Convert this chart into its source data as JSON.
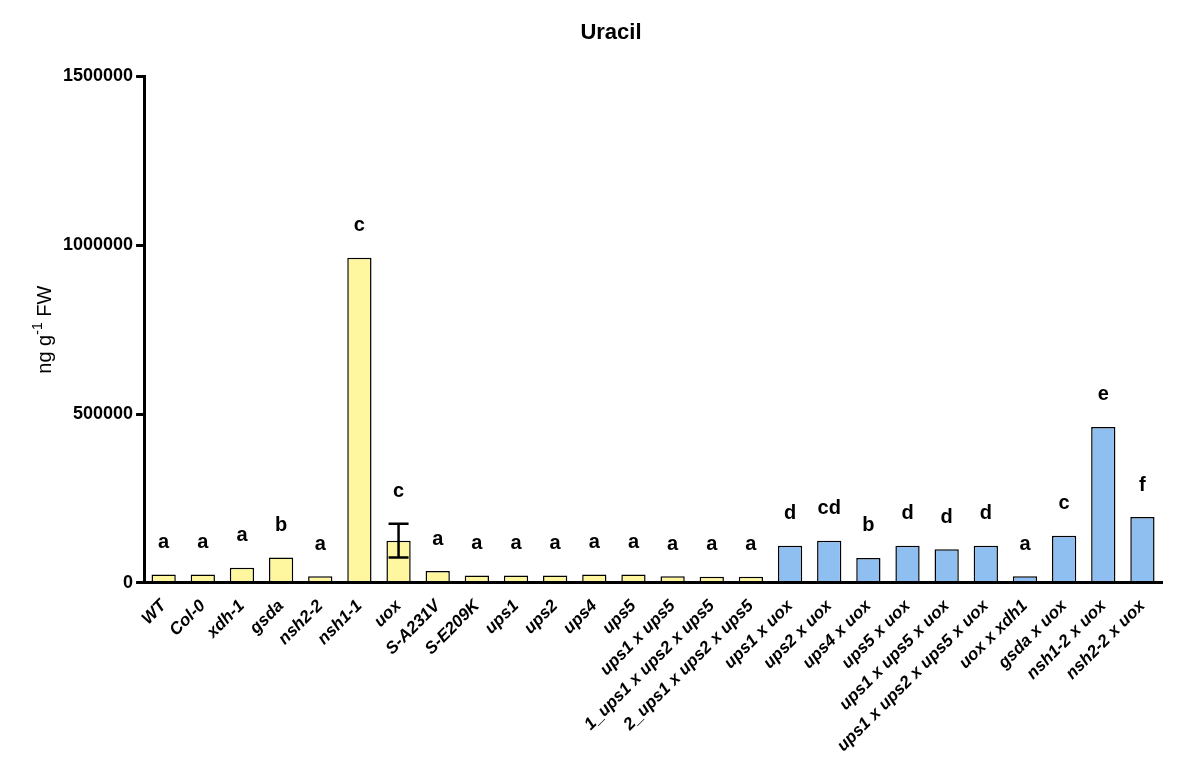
{
  "chart_data": {
    "type": "bar",
    "title": "Uracil",
    "ylabel": "ng g$^{-1}$ FW",
    "categories": [
      "WT",
      "Col-0",
      "xdh-1",
      "gsda",
      "nsh2-2",
      "nsh1-1",
      "uox",
      "S-A231V",
      "S-E209K",
      "ups1",
      "ups2",
      "ups4",
      "ups5",
      "ups1 x ups5",
      "1_ups1 x ups2 x ups5",
      "2_ups1 x ups2 x ups5",
      "ups1 x uox",
      "ups2 x uox",
      "ups4 x uox",
      "ups5 x uox",
      "ups1 x ups5 x uox",
      "ups1 x ups2 x ups5 x uox",
      "uox x xdh1",
      "gsda x uox",
      "nsh1-2 x uox",
      "nsh2-2 x uox"
    ],
    "values": [
      25000,
      25000,
      45000,
      75000,
      20000,
      963000,
      125000,
      35000,
      22000,
      22000,
      22000,
      25000,
      25000,
      20000,
      18000,
      18000,
      110000,
      125000,
      74000,
      110000,
      100000,
      110000,
      20000,
      140000,
      462000,
      195000
    ],
    "errors": [
      null,
      null,
      null,
      null,
      null,
      null,
      50000,
      null,
      null,
      null,
      null,
      null,
      null,
      null,
      null,
      null,
      null,
      null,
      null,
      null,
      null,
      null,
      null,
      null,
      null,
      null
    ],
    "colors": [
      "#fff7a0",
      "#fff7a0",
      "#fff7a0",
      "#fff7a0",
      "#fff7a0",
      "#fff7a0",
      "#fff7a0",
      "#fff7a0",
      "#fff7a0",
      "#fff7a0",
      "#fff7a0",
      "#fff7a0",
      "#fff7a0",
      "#fff7a0",
      "#fff7a0",
      "#fff7a0",
      "#8fbff0",
      "#8fbff0",
      "#8fbff0",
      "#8fbff0",
      "#8fbff0",
      "#8fbff0",
      "#8fbff0",
      "#8fbff0",
      "#8fbff0",
      "#8fbff0"
    ],
    "ylim": [
      0,
      1500000
    ],
    "yticks": [
      0,
      500000,
      1000000,
      1500000
    ],
    "grid": false,
    "legend": false,
    "annotations": [
      "a",
      "a",
      "a",
      "b",
      "a",
      "c",
      "c",
      "a",
      "a",
      "a",
      "a",
      "a",
      "a",
      "a",
      "a",
      "a",
      "d",
      "cd",
      "b",
      "d",
      "d",
      "d",
      "a",
      "c",
      "e",
      "f"
    ]
  }
}
